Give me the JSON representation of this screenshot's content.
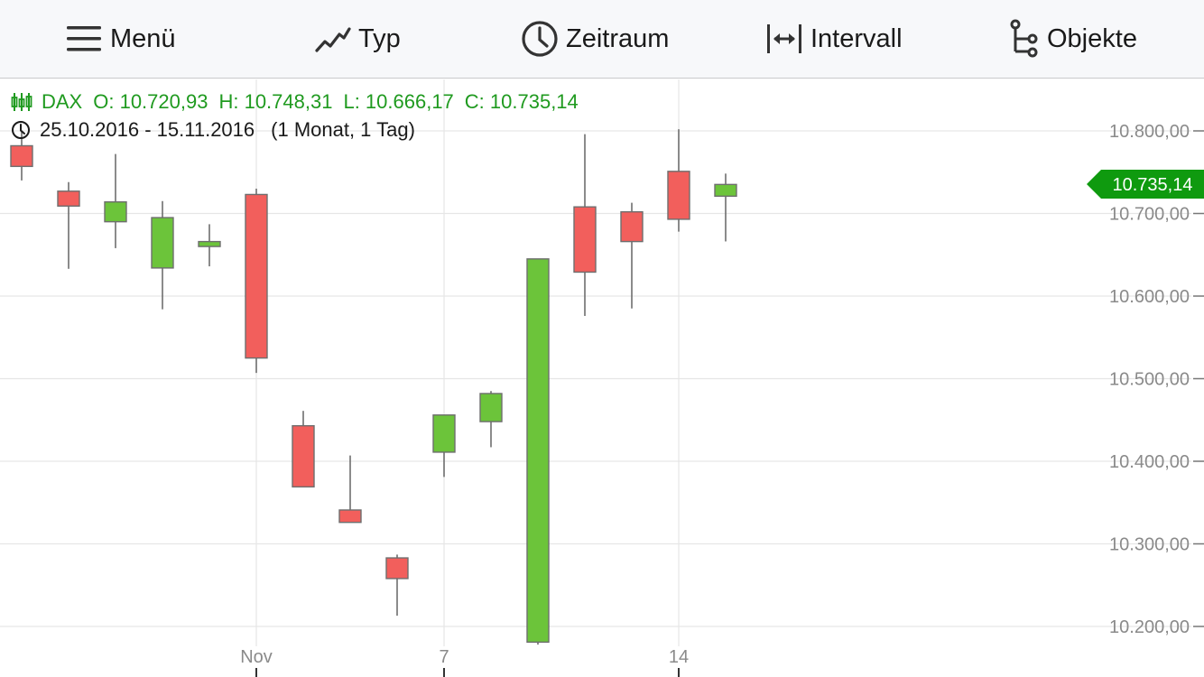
{
  "toolbar": {
    "menu_label": "Menü",
    "type_label": "Typ",
    "period_label": "Zeitraum",
    "interval_label": "Intervall",
    "objects_label": "Objekte"
  },
  "legend": {
    "symbol": "DAX",
    "open": "O: 10.720,93",
    "high": "H: 10.748,31",
    "low": "L: 10.666,17",
    "close": "C: 10.735,14",
    "date_range": "25.10.2016 - 15.11.2016",
    "resolution": "(1 Monat, 1 Tag)"
  },
  "colors": {
    "up": "#6cc43a",
    "down": "#f25f5c",
    "price_tag": "#0f9a0f",
    "legend_text": "#1f9a1f"
  },
  "chart_data": {
    "type": "candlestick",
    "ylim": [
      10190,
      10860
    ],
    "y_ticks": [
      10200,
      10300,
      10400,
      10500,
      10600,
      10700,
      10800
    ],
    "y_tick_labels": [
      "10.200,00",
      "10.300,00",
      "10.400,00",
      "10.500,00",
      "10.600,00",
      "10.700,00",
      "10.800,00"
    ],
    "x_labels": [
      {
        "label": "Nov",
        "date": "2016-11-01"
      },
      {
        "label": "7",
        "date": "2016-11-07"
      },
      {
        "label": "14",
        "date": "2016-11-14"
      }
    ],
    "last_price_label": "10.735,14",
    "last_price": 10735.14,
    "candles": [
      {
        "date": "2016-10-25",
        "open": 10782,
        "high": 10800,
        "low": 10740,
        "close": 10757
      },
      {
        "date": "2016-10-26",
        "open": 10727,
        "high": 10738,
        "low": 10633,
        "close": 10709
      },
      {
        "date": "2016-10-27",
        "open": 10690,
        "high": 10772,
        "low": 10658,
        "close": 10714
      },
      {
        "date": "2016-10-28",
        "open": 10634,
        "high": 10715,
        "low": 10584,
        "close": 10695
      },
      {
        "date": "2016-10-31",
        "open": 10660,
        "high": 10687,
        "low": 10636,
        "close": 10666
      },
      {
        "date": "2016-11-01",
        "open": 10723,
        "high": 10730,
        "low": 10507,
        "close": 10525
      },
      {
        "date": "2016-11-02",
        "open": 10443,
        "high": 10461,
        "low": 10369,
        "close": 10369
      },
      {
        "date": "2016-11-03",
        "open": 10341,
        "high": 10407,
        "low": 10326,
        "close": 10326
      },
      {
        "date": "2016-11-04",
        "open": 10283,
        "high": 10287,
        "low": 10213,
        "close": 10258
      },
      {
        "date": "2016-11-07",
        "open": 10411,
        "high": 10456,
        "low": 10381,
        "close": 10456
      },
      {
        "date": "2016-11-08",
        "open": 10448,
        "high": 10485,
        "low": 10417,
        "close": 10482
      },
      {
        "date": "2016-11-09",
        "open": 10181,
        "high": 10645,
        "low": 10178,
        "close": 10645
      },
      {
        "date": "2016-11-10",
        "open": 10708,
        "high": 10796,
        "low": 10576,
        "close": 10629
      },
      {
        "date": "2016-11-11",
        "open": 10702,
        "high": 10713,
        "low": 10585,
        "close": 10666
      },
      {
        "date": "2016-11-14",
        "open": 10751,
        "high": 10802,
        "low": 10678,
        "close": 10693
      },
      {
        "date": "2016-11-15",
        "open": 10720.93,
        "high": 10748.31,
        "low": 10666.17,
        "close": 10735.14
      }
    ]
  }
}
